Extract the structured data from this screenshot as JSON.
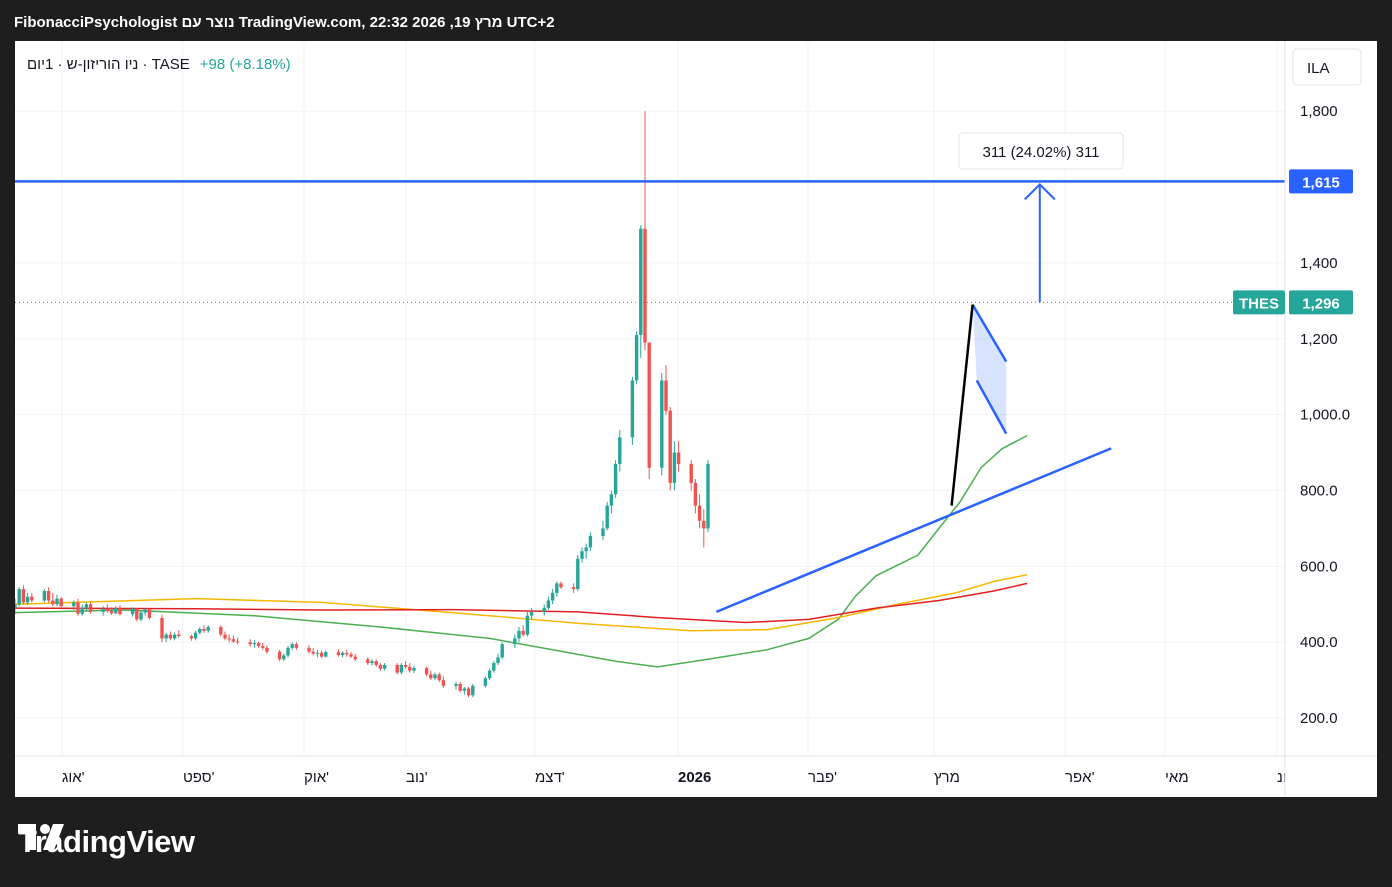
{
  "header": {
    "title": "FibonacciPsychologist נוצר עם TradingView.com, 22:32 2026 ,19 מרץ UTC+2"
  },
  "legend": {
    "symbol_desc": "ניו הוריזון-ש · 1יום · TASE",
    "change": "+98 (+8.18%)"
  },
  "currency_label": "ILA",
  "annotation": {
    "text": "311 (24.02%) 311"
  },
  "price_tags": {
    "target": {
      "value": "1,615"
    },
    "last": {
      "symbol": "THES",
      "value": "1,296"
    }
  },
  "footer": {
    "brand": "TradingView"
  },
  "colors": {
    "up": "#26a69a",
    "down": "#ef5350",
    "target_line": "#2962ff",
    "ma_short": "#4caf50",
    "ma_mid": "#f5b800",
    "ma_long": "#e02020"
  },
  "chart_data": {
    "type": "candlestick",
    "y_ticks": [
      "1,800",
      "1,400",
      "1,200",
      "1,000.0",
      "800.0",
      "600.0",
      "400.0",
      "200.0"
    ],
    "y_tick_values": [
      1800,
      1400,
      1200,
      1000,
      800,
      600,
      400,
      200
    ],
    "x_ticks": [
      "אוג'",
      "ספט'",
      "אוק'",
      "נוב'",
      "דצמ'",
      "2026",
      "פבר'",
      "מרץ",
      "אפר'",
      "מאי",
      "ונ"
    ],
    "ylim": [
      100,
      1985
    ],
    "target_level": 1615,
    "last_price": 1296,
    "measure": {
      "from": 1296,
      "to": 1607,
      "label": "311 (24.02%) 311"
    },
    "trendline": {
      "from": "2026-01-03",
      "from_value": 480,
      "to": "2026-04-07",
      "to_value": 911
    },
    "pole": {
      "from": "2026-02-28",
      "from_value": 760,
      "to": "2026-03-05",
      "to_value": 1290
    },
    "flag_upper": {
      "from": "2026-03-05",
      "from_value": 1290,
      "to": "2026-03-13",
      "to_value": 1140
    },
    "flag_lower": {
      "from": "2026-03-06",
      "from_value": 1090,
      "to": "2026-03-13",
      "to_value": 950
    },
    "moving_averages": [
      {
        "id": "ma_short",
        "points": [
          [
            "2025-07-20",
            478
          ],
          [
            "2025-08-15",
            485
          ],
          [
            "2025-09-15",
            470
          ],
          [
            "2025-10-15",
            440
          ],
          [
            "2025-11-10",
            410
          ],
          [
            "2025-11-25",
            380
          ],
          [
            "2025-12-10",
            350
          ],
          [
            "2025-12-20",
            335
          ],
          [
            "2026-01-01",
            355
          ],
          [
            "2026-01-15",
            380
          ],
          [
            "2026-01-25",
            410
          ],
          [
            "2026-02-01",
            460
          ],
          [
            "2026-02-05",
            520
          ],
          [
            "2026-02-10",
            575
          ],
          [
            "2026-02-20",
            630
          ],
          [
            "2026-02-25",
            700
          ],
          [
            "2026-03-02",
            770
          ],
          [
            "2026-03-07",
            860
          ],
          [
            "2026-03-12",
            910
          ],
          [
            "2026-03-18",
            945
          ]
        ]
      },
      {
        "id": "ma_mid",
        "points": [
          [
            "2025-07-20",
            500
          ],
          [
            "2025-09-01",
            515
          ],
          [
            "2025-10-01",
            505
          ],
          [
            "2025-11-01",
            478
          ],
          [
            "2025-12-01",
            450
          ],
          [
            "2025-12-28",
            430
          ],
          [
            "2026-01-15",
            433
          ],
          [
            "2026-02-01",
            465
          ],
          [
            "2026-02-15",
            500
          ],
          [
            "2026-03-01",
            530
          ],
          [
            "2026-03-10",
            560
          ],
          [
            "2026-03-18",
            578
          ]
        ]
      },
      {
        "id": "ma_long",
        "points": [
          [
            "2025-07-20",
            490
          ],
          [
            "2025-09-01",
            488
          ],
          [
            "2025-10-01",
            485
          ],
          [
            "2025-11-01",
            486
          ],
          [
            "2025-12-01",
            480
          ],
          [
            "2025-12-20",
            465
          ],
          [
            "2026-01-10",
            452
          ],
          [
            "2026-01-25",
            460
          ],
          [
            "2026-02-10",
            490
          ],
          [
            "2026-02-25",
            510
          ],
          [
            "2026-03-10",
            535
          ],
          [
            "2026-03-18",
            555
          ]
        ]
      }
    ],
    "candles_shape": [
      "date",
      "open",
      "high",
      "low",
      "close"
    ],
    "candles": [
      [
        "2025-07-20",
        490,
        515,
        475,
        500
      ],
      [
        "2025-07-21",
        500,
        545,
        495,
        540
      ],
      [
        "2025-07-22",
        540,
        550,
        500,
        505
      ],
      [
        "2025-07-23",
        505,
        530,
        498,
        520
      ],
      [
        "2025-07-24",
        520,
        530,
        505,
        510
      ],
      [
        "2025-07-27",
        510,
        540,
        505,
        535
      ],
      [
        "2025-07-28",
        535,
        545,
        505,
        510
      ],
      [
        "2025-07-29",
        510,
        530,
        495,
        500
      ],
      [
        "2025-07-30",
        500,
        525,
        495,
        515
      ],
      [
        "2025-07-31",
        515,
        520,
        490,
        495
      ],
      [
        "2025-08-03",
        495,
        510,
        485,
        505
      ],
      [
        "2025-08-04",
        505,
        515,
        470,
        475
      ],
      [
        "2025-08-05",
        475,
        500,
        470,
        490
      ],
      [
        "2025-08-06",
        490,
        505,
        480,
        500
      ],
      [
        "2025-08-07",
        500,
        505,
        475,
        480
      ],
      [
        "2025-08-10",
        480,
        495,
        470,
        488
      ],
      [
        "2025-08-11",
        488,
        500,
        478,
        482
      ],
      [
        "2025-08-12",
        482,
        492,
        472,
        476
      ],
      [
        "2025-08-13",
        476,
        496,
        474,
        490
      ],
      [
        "2025-08-14",
        490,
        498,
        470,
        474
      ],
      [
        "2025-08-17",
        474,
        492,
        468,
        488
      ],
      [
        "2025-08-18",
        488,
        490,
        455,
        460
      ],
      [
        "2025-08-19",
        460,
        482,
        455,
        478
      ],
      [
        "2025-08-20",
        478,
        490,
        470,
        486
      ],
      [
        "2025-08-21",
        486,
        488,
        460,
        464
      ],
      [
        "2025-08-24",
        464,
        472,
        400,
        410
      ],
      [
        "2025-08-25",
        410,
        425,
        400,
        420
      ],
      [
        "2025-08-26",
        420,
        428,
        405,
        410
      ],
      [
        "2025-08-27",
        410,
        425,
        405,
        420
      ],
      [
        "2025-08-28",
        420,
        432,
        412,
        416
      ],
      [
        "2025-08-31",
        416,
        420,
        404,
        410
      ],
      [
        "2025-09-01",
        410,
        430,
        405,
        425
      ],
      [
        "2025-09-02",
        425,
        440,
        420,
        435
      ],
      [
        "2025-09-03",
        435,
        445,
        425,
        430
      ],
      [
        "2025-09-04",
        430,
        445,
        425,
        440
      ],
      [
        "2025-09-07",
        440,
        445,
        415,
        420
      ],
      [
        "2025-09-08",
        420,
        428,
        405,
        410
      ],
      [
        "2025-09-09",
        410,
        420,
        400,
        408
      ],
      [
        "2025-09-10",
        408,
        418,
        398,
        402
      ],
      [
        "2025-09-11",
        402,
        412,
        395,
        400
      ],
      [
        "2025-09-14",
        400,
        408,
        388,
        395
      ],
      [
        "2025-09-15",
        395,
        405,
        385,
        398
      ],
      [
        "2025-09-16",
        398,
        402,
        385,
        390
      ],
      [
        "2025-09-17",
        390,
        398,
        380,
        385
      ],
      [
        "2025-09-18",
        385,
        392,
        370,
        375
      ],
      [
        "2025-09-21",
        375,
        380,
        350,
        355
      ],
      [
        "2025-09-22",
        355,
        370,
        350,
        365
      ],
      [
        "2025-09-23",
        365,
        390,
        360,
        385
      ],
      [
        "2025-09-24",
        385,
        400,
        380,
        395
      ],
      [
        "2025-09-25",
        395,
        400,
        380,
        385
      ],
      [
        "2025-09-28",
        385,
        392,
        370,
        375
      ],
      [
        "2025-09-29",
        375,
        385,
        365,
        370
      ],
      [
        "2025-09-30",
        370,
        380,
        360,
        372
      ],
      [
        "2025-10-01",
        372,
        378,
        358,
        362
      ],
      [
        "2025-10-02",
        362,
        378,
        360,
        374
      ],
      [
        "2025-10-05",
        374,
        382,
        362,
        366
      ],
      [
        "2025-10-06",
        366,
        376,
        360,
        372
      ],
      [
        "2025-10-07",
        372,
        380,
        362,
        368
      ],
      [
        "2025-10-08",
        368,
        374,
        358,
        362
      ],
      [
        "2025-10-09",
        362,
        370,
        350,
        355
      ],
      [
        "2025-10-12",
        355,
        360,
        340,
        345
      ],
      [
        "2025-10-13",
        345,
        355,
        338,
        350
      ],
      [
        "2025-10-14",
        350,
        355,
        335,
        340
      ],
      [
        "2025-10-15",
        340,
        345,
        325,
        330
      ],
      [
        "2025-10-16",
        330,
        345,
        325,
        340
      ],
      [
        "2025-10-19",
        340,
        345,
        315,
        320
      ],
      [
        "2025-10-20",
        320,
        345,
        315,
        340
      ],
      [
        "2025-10-21",
        340,
        350,
        330,
        335
      ],
      [
        "2025-10-22",
        335,
        345,
        320,
        325
      ],
      [
        "2025-10-23",
        325,
        338,
        318,
        332
      ],
      [
        "2025-10-26",
        332,
        336,
        310,
        315
      ],
      [
        "2025-10-27",
        315,
        325,
        300,
        305
      ],
      [
        "2025-10-28",
        305,
        320,
        300,
        315
      ],
      [
        "2025-10-29",
        315,
        320,
        295,
        300
      ],
      [
        "2025-10-30",
        300,
        310,
        280,
        285
      ],
      [
        "2025-11-02",
        285,
        295,
        275,
        290
      ],
      [
        "2025-11-03",
        290,
        295,
        268,
        272
      ],
      [
        "2025-11-04",
        272,
        282,
        262,
        278
      ],
      [
        "2025-11-05",
        278,
        282,
        255,
        260
      ],
      [
        "2025-11-06",
        260,
        290,
        255,
        285
      ],
      [
        "2025-11-09",
        285,
        310,
        280,
        305
      ],
      [
        "2025-11-10",
        305,
        330,
        300,
        325
      ],
      [
        "2025-11-11",
        325,
        350,
        320,
        345
      ],
      [
        "2025-11-12",
        345,
        370,
        340,
        360
      ],
      [
        "2025-11-13",
        360,
        400,
        355,
        395
      ],
      [
        "2025-11-16",
        395,
        420,
        385,
        410
      ],
      [
        "2025-11-17",
        410,
        440,
        400,
        430
      ],
      [
        "2025-11-18",
        430,
        445,
        415,
        420
      ],
      [
        "2025-11-19",
        420,
        480,
        415,
        470
      ],
      [
        "2025-11-20",
        470,
        490,
        460,
        480
      ],
      [
        "2025-11-23",
        480,
        500,
        470,
        490
      ],
      [
        "2025-11-24",
        490,
        520,
        485,
        510
      ],
      [
        "2025-11-25",
        510,
        540,
        500,
        530
      ],
      [
        "2025-11-26",
        530,
        560,
        520,
        555
      ],
      [
        "2025-11-27",
        555,
        560,
        540,
        545
      ],
      [
        "2025-11-30",
        545,
        555,
        530,
        540
      ],
      [
        "2025-12-01",
        540,
        630,
        535,
        620
      ],
      [
        "2025-12-02",
        620,
        650,
        610,
        640
      ],
      [
        "2025-12-03",
        640,
        660,
        620,
        650
      ],
      [
        "2025-12-04",
        650,
        690,
        640,
        680
      ],
      [
        "2025-12-07",
        680,
        720,
        670,
        700
      ],
      [
        "2025-12-08",
        700,
        770,
        695,
        760
      ],
      [
        "2025-12-09",
        760,
        800,
        740,
        790
      ],
      [
        "2025-12-10",
        790,
        880,
        780,
        870
      ],
      [
        "2025-12-11",
        870,
        960,
        850,
        940
      ],
      [
        "2025-12-14",
        940,
        1100,
        920,
        1090
      ],
      [
        "2025-12-15",
        1090,
        1220,
        1080,
        1210
      ],
      [
        "2025-12-16",
        1210,
        1500,
        1150,
        1490
      ],
      [
        "2025-12-17",
        1490,
        1800,
        1170,
        1190
      ],
      [
        "2025-12-18",
        1190,
        1190,
        830,
        860
      ],
      [
        "2025-12-21",
        860,
        1110,
        840,
        1090
      ],
      [
        "2025-12-22",
        1090,
        1130,
        1000,
        1010
      ],
      [
        "2025-12-23",
        1010,
        1020,
        800,
        820
      ],
      [
        "2025-12-24",
        820,
        930,
        800,
        900
      ],
      [
        "2025-12-25",
        900,
        930,
        850,
        870
      ],
      [
        "2025-12-28",
        870,
        880,
        800,
        820
      ],
      [
        "2025-12-29",
        820,
        830,
        740,
        760
      ],
      [
        "2025-12-30",
        760,
        790,
        700,
        720
      ],
      [
        "2025-12-31",
        720,
        750,
        650,
        700
      ],
      [
        "2026-01-01",
        700,
        880,
        690,
        870
      ]
    ]
  }
}
